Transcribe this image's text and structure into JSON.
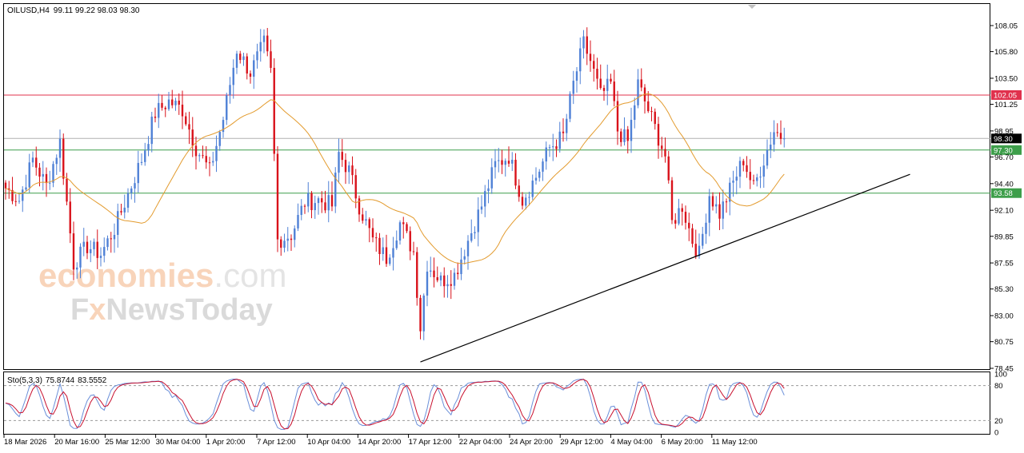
{
  "header": {
    "symbol_label": "OILUSD,H4",
    "ohlc": "99.11 99.22 98.03 98.30"
  },
  "oscillator": {
    "label": "Sto(5,3,3)",
    "main_value": "75.8744",
    "signal_value": "83.5552",
    "levels": [
      80,
      20
    ],
    "scale_labels": [
      "100",
      "80",
      "20",
      "0"
    ]
  },
  "watermark": {
    "line1_part1": "economies",
    "line1_part2": ".com",
    "line2_part1": "F",
    "line2_part2": "x",
    "line2_part3": "NewsToday"
  },
  "colors": {
    "bull": "#4f81d6",
    "bear": "#d9121b",
    "ma": "#e39b2e",
    "resistance": "#e0314d",
    "support": "#3d9e4a",
    "price_tag": "#000000",
    "trendline": "#000000",
    "sto_main": "#6a8fd9",
    "sto_signal": "#c8102e"
  },
  "chart_data": {
    "type": "candlestick",
    "title": "OILUSD,H4",
    "y_axis_ticks": [
      "108.05",
      "105.80",
      "103.50",
      "101.25",
      "98.95",
      "96.70",
      "94.40",
      "92.10",
      "89.85",
      "87.55",
      "85.30",
      "83.00",
      "80.75",
      "78.45"
    ],
    "ylim": [
      78.45,
      108.05
    ],
    "x_axis_ticks": [
      "18 Mar 2026",
      "20 Mar 16:00",
      "25 Mar 12:00",
      "30 Mar 04:00",
      "1 Apr 20:00",
      "7 Apr 12:00",
      "10 Apr 04:00",
      "14 Apr 20:00",
      "17 Apr 12:00",
      "22 Apr 04:00",
      "24 Apr 20:00",
      "29 Apr 12:00",
      "4 May 04:00",
      "6 May 20:00",
      "11 May 12:00"
    ],
    "last_price": {
      "label": "98.30",
      "value": 98.3
    },
    "horizontal_levels": [
      {
        "label": "102.05",
        "value": 102.05,
        "kind": "resistance"
      },
      {
        "label": "97.30",
        "value": 97.3,
        "kind": "support"
      },
      {
        "label": "93.58",
        "value": 93.58,
        "kind": "support"
      }
    ],
    "trendline": {
      "from": {
        "bar": 122,
        "price": 79.0
      },
      "to": {
        "bar": 266,
        "price": 95.2
      }
    },
    "key_closes": [
      {
        "bar": 0,
        "close": 94.0
      },
      {
        "bar": 4,
        "close": 93.0
      },
      {
        "bar": 8,
        "close": 96.5
      },
      {
        "bar": 12,
        "close": 94.2
      },
      {
        "bar": 16,
        "close": 98.0
      },
      {
        "bar": 20,
        "close": 87.5
      },
      {
        "bar": 24,
        "close": 89.0
      },
      {
        "bar": 28,
        "close": 88.3
      },
      {
        "bar": 32,
        "close": 90.5
      },
      {
        "bar": 36,
        "close": 93.5
      },
      {
        "bar": 40,
        "close": 96.5
      },
      {
        "bar": 44,
        "close": 100.5
      },
      {
        "bar": 48,
        "close": 101.5
      },
      {
        "bar": 52,
        "close": 100.8
      },
      {
        "bar": 56,
        "close": 97.5
      },
      {
        "bar": 60,
        "close": 95.5
      },
      {
        "bar": 64,
        "close": 100.0
      },
      {
        "bar": 68,
        "close": 106.0
      },
      {
        "bar": 72,
        "close": 104.0
      },
      {
        "bar": 76,
        "close": 106.5
      },
      {
        "bar": 78,
        "close": 104.0
      },
      {
        "bar": 80,
        "close": 89.5
      },
      {
        "bar": 84,
        "close": 90.0
      },
      {
        "bar": 88,
        "close": 92.8
      },
      {
        "bar": 92,
        "close": 93.0
      },
      {
        "bar": 96,
        "close": 92.5
      },
      {
        "bar": 98,
        "close": 97.0
      },
      {
        "bar": 101,
        "close": 95.5
      },
      {
        "bar": 104,
        "close": 92.5
      },
      {
        "bar": 108,
        "close": 89.5
      },
      {
        "bar": 112,
        "close": 88.0
      },
      {
        "bar": 116,
        "close": 91.0
      },
      {
        "bar": 120,
        "close": 88.5
      },
      {
        "bar": 122,
        "close": 82.0
      },
      {
        "bar": 124,
        "close": 87.5
      },
      {
        "bar": 128,
        "close": 86.0
      },
      {
        "bar": 132,
        "close": 86.5
      },
      {
        "bar": 136,
        "close": 89.5
      },
      {
        "bar": 140,
        "close": 92.5
      },
      {
        "bar": 144,
        "close": 96.0
      },
      {
        "bar": 148,
        "close": 96.8
      },
      {
        "bar": 152,
        "close": 93.0
      },
      {
        "bar": 156,
        "close": 95.0
      },
      {
        "bar": 160,
        "close": 97.5
      },
      {
        "bar": 164,
        "close": 98.5
      },
      {
        "bar": 167,
        "close": 103.0
      },
      {
        "bar": 170,
        "close": 106.5
      },
      {
        "bar": 172,
        "close": 105.0
      },
      {
        "bar": 175,
        "close": 102.0
      },
      {
        "bar": 178,
        "close": 103.0
      },
      {
        "bar": 180,
        "close": 99.0
      },
      {
        "bar": 183,
        "close": 98.0
      },
      {
        "bar": 186,
        "close": 103.0
      },
      {
        "bar": 190,
        "close": 100.0
      },
      {
        "bar": 194,
        "close": 96.8
      },
      {
        "bar": 196,
        "close": 91.0
      },
      {
        "bar": 199,
        "close": 92.5
      },
      {
        "bar": 202,
        "close": 89.5
      },
      {
        "bar": 204,
        "close": 88.3
      },
      {
        "bar": 207,
        "close": 93.5
      },
      {
        "bar": 210,
        "close": 91.8
      },
      {
        "bar": 214,
        "close": 94.5
      },
      {
        "bar": 217,
        "close": 96.5
      },
      {
        "bar": 220,
        "close": 94.0
      },
      {
        "bar": 223,
        "close": 96.5
      },
      {
        "bar": 226,
        "close": 99.0
      },
      {
        "bar": 229,
        "close": 98.3
      }
    ]
  }
}
